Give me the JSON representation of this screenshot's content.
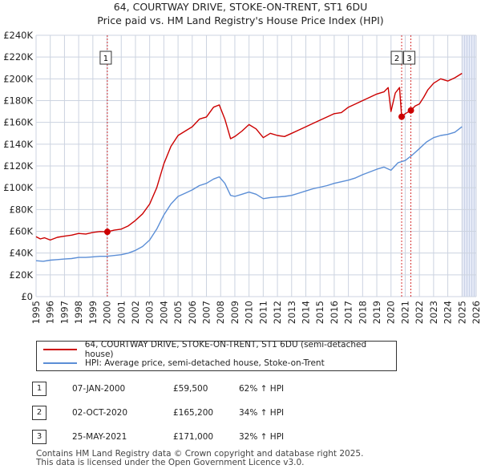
{
  "chart_data": {
    "type": "line",
    "title": "64, COURTWAY DRIVE, STOKE-ON-TRENT, ST1 6DU",
    "subtitle": "Price paid vs. HM Land Registry's House Price Index (HPI)",
    "xlabel": "",
    "ylabel": "",
    "xlim": [
      1995,
      2026
    ],
    "ylim": [
      0,
      240000
    ],
    "x_ticks": [
      1995,
      1996,
      1997,
      1998,
      1999,
      2000,
      2001,
      2002,
      2003,
      2004,
      2005,
      2006,
      2007,
      2008,
      2009,
      2010,
      2011,
      2012,
      2013,
      2014,
      2015,
      2016,
      2017,
      2018,
      2019,
      2020,
      2021,
      2022,
      2023,
      2024,
      2025,
      2026
    ],
    "x_tick_labels": [
      "1995",
      "1996",
      "1997",
      "1998",
      "1999",
      "2000",
      "2001",
      "2002",
      "2003",
      "2004",
      "2005",
      "2006",
      "2007",
      "2008",
      "2009",
      "2010",
      "2011",
      "2012",
      "2013",
      "2014",
      "2015",
      "2016",
      "2017",
      "2018",
      "2019",
      "2020",
      "2021",
      "2022",
      "2023",
      "2024",
      "2025",
      "2026"
    ],
    "y_ticks": [
      0,
      20000,
      40000,
      60000,
      80000,
      100000,
      120000,
      140000,
      160000,
      180000,
      200000,
      220000,
      240000
    ],
    "y_tick_labels": [
      "£0",
      "£20K",
      "£40K",
      "£60K",
      "£80K",
      "£100K",
      "£120K",
      "£140K",
      "£160K",
      "£180K",
      "£200K",
      "£220K",
      "£240K"
    ],
    "grid": true,
    "series": [
      {
        "name": "64, COURTWAY DRIVE, STOKE-ON-TRENT, ST1 6DU (semi-detached house)",
        "color": "#cc0000",
        "x": [
          1995.0,
          1995.3,
          1995.6,
          1996.0,
          1996.5,
          1997.0,
          1997.5,
          1998.0,
          1998.5,
          1999.0,
          1999.5,
          2000.02,
          2000.5,
          2001.0,
          2001.5,
          2002.0,
          2002.5,
          2003.0,
          2003.5,
          2004.0,
          2004.5,
          2005.0,
          2005.5,
          2006.0,
          2006.5,
          2007.0,
          2007.5,
          2007.9,
          2008.3,
          2008.7,
          2009.0,
          2009.5,
          2010.0,
          2010.5,
          2011.0,
          2011.5,
          2012.0,
          2012.5,
          2013.0,
          2013.5,
          2014.0,
          2014.5,
          2015.0,
          2015.5,
          2016.0,
          2016.5,
          2017.0,
          2017.5,
          2018.0,
          2018.5,
          2019.0,
          2019.5,
          2019.8,
          2020.0,
          2020.3,
          2020.6,
          2020.75,
          2021.0,
          2021.4,
          2021.7,
          2022.0,
          2022.3,
          2022.6,
          2023.0,
          2023.5,
          2024.0,
          2024.5,
          2025.0
        ],
        "y": [
          55000,
          53000,
          54000,
          52000,
          54500,
          55500,
          56500,
          58000,
          57500,
          59000,
          59800,
          59500,
          61000,
          62000,
          65000,
          70000,
          76000,
          85000,
          100000,
          122000,
          138000,
          148000,
          152000,
          156000,
          163000,
          165000,
          174000,
          176000,
          163000,
          145000,
          147000,
          152000,
          158000,
          154000,
          146000,
          150000,
          148000,
          147000,
          150000,
          153000,
          156000,
          159000,
          162000,
          165000,
          168000,
          169000,
          174000,
          177000,
          180000,
          183000,
          186000,
          188000,
          192000,
          170000,
          187000,
          192000,
          165200,
          168000,
          171000,
          175000,
          177000,
          183000,
          190000,
          196000,
          200000,
          198000,
          201000,
          205000
        ]
      },
      {
        "name": "HPI: Average price, semi-detached house, Stoke-on-Trent",
        "color": "#5b8ed6",
        "x": [
          1995.0,
          1995.5,
          1996.0,
          1996.5,
          1997.0,
          1997.5,
          1998.0,
          1998.5,
          1999.0,
          1999.5,
          2000.0,
          2000.5,
          2001.0,
          2001.5,
          2002.0,
          2002.5,
          2003.0,
          2003.5,
          2004.0,
          2004.5,
          2005.0,
          2005.5,
          2006.0,
          2006.5,
          2007.0,
          2007.5,
          2007.9,
          2008.3,
          2008.7,
          2009.0,
          2009.5,
          2010.0,
          2010.5,
          2011.0,
          2011.5,
          2012.0,
          2012.5,
          2013.0,
          2013.5,
          2014.0,
          2014.5,
          2015.0,
          2015.5,
          2016.0,
          2016.5,
          2017.0,
          2017.5,
          2018.0,
          2018.5,
          2019.0,
          2019.5,
          2020.0,
          2020.5,
          2021.0,
          2021.5,
          2022.0,
          2022.5,
          2023.0,
          2023.5,
          2024.0,
          2024.5,
          2025.0
        ],
        "y": [
          33000,
          32500,
          33500,
          34000,
          34500,
          35000,
          36000,
          36000,
          36500,
          37000,
          37000,
          37800,
          38500,
          40000,
          42500,
          46000,
          52000,
          62000,
          75000,
          85000,
          92000,
          95000,
          98000,
          102000,
          104000,
          108000,
          110000,
          104000,
          93000,
          92000,
          94000,
          96000,
          94000,
          90000,
          91000,
          91500,
          92000,
          93000,
          95000,
          97000,
          99000,
          100500,
          102000,
          104000,
          105500,
          107000,
          109000,
          112000,
          114500,
          117000,
          119000,
          116000,
          123000,
          125000,
          130000,
          136000,
          142000,
          146000,
          148000,
          149000,
          151000,
          156000
        ]
      }
    ],
    "sales": [
      {
        "label": "1",
        "date": "07-JAN-2000",
        "x": 2000.02,
        "price": "£59,500",
        "value": 59500,
        "hpi": "62% ↑ HPI"
      },
      {
        "label": "2",
        "date": "02-OCT-2020",
        "x": 2020.75,
        "price": "£165,200",
        "value": 165200,
        "hpi": "34% ↑ HPI"
      },
      {
        "label": "3",
        "date": "25-MAY-2021",
        "x": 2021.4,
        "price": "£171,000",
        "value": 171000,
        "hpi": "32% ↑ HPI"
      }
    ],
    "future_shade_from": 2025.0,
    "colors": {
      "shade": "#e6ebf7",
      "grid": "#ccd3e0",
      "sale_marker": "#cc0000"
    }
  },
  "legend": {
    "property_label": "64, COURTWAY DRIVE, STOKE-ON-TRENT, ST1 6DU (semi-detached house)",
    "hpi_label": "HPI: Average price, semi-detached house, Stoke-on-Trent"
  },
  "footer": {
    "line1": "Contains HM Land Registry data © Crown copyright and database right 2025.",
    "line2": "This data is licensed under the Open Government Licence v3.0."
  }
}
